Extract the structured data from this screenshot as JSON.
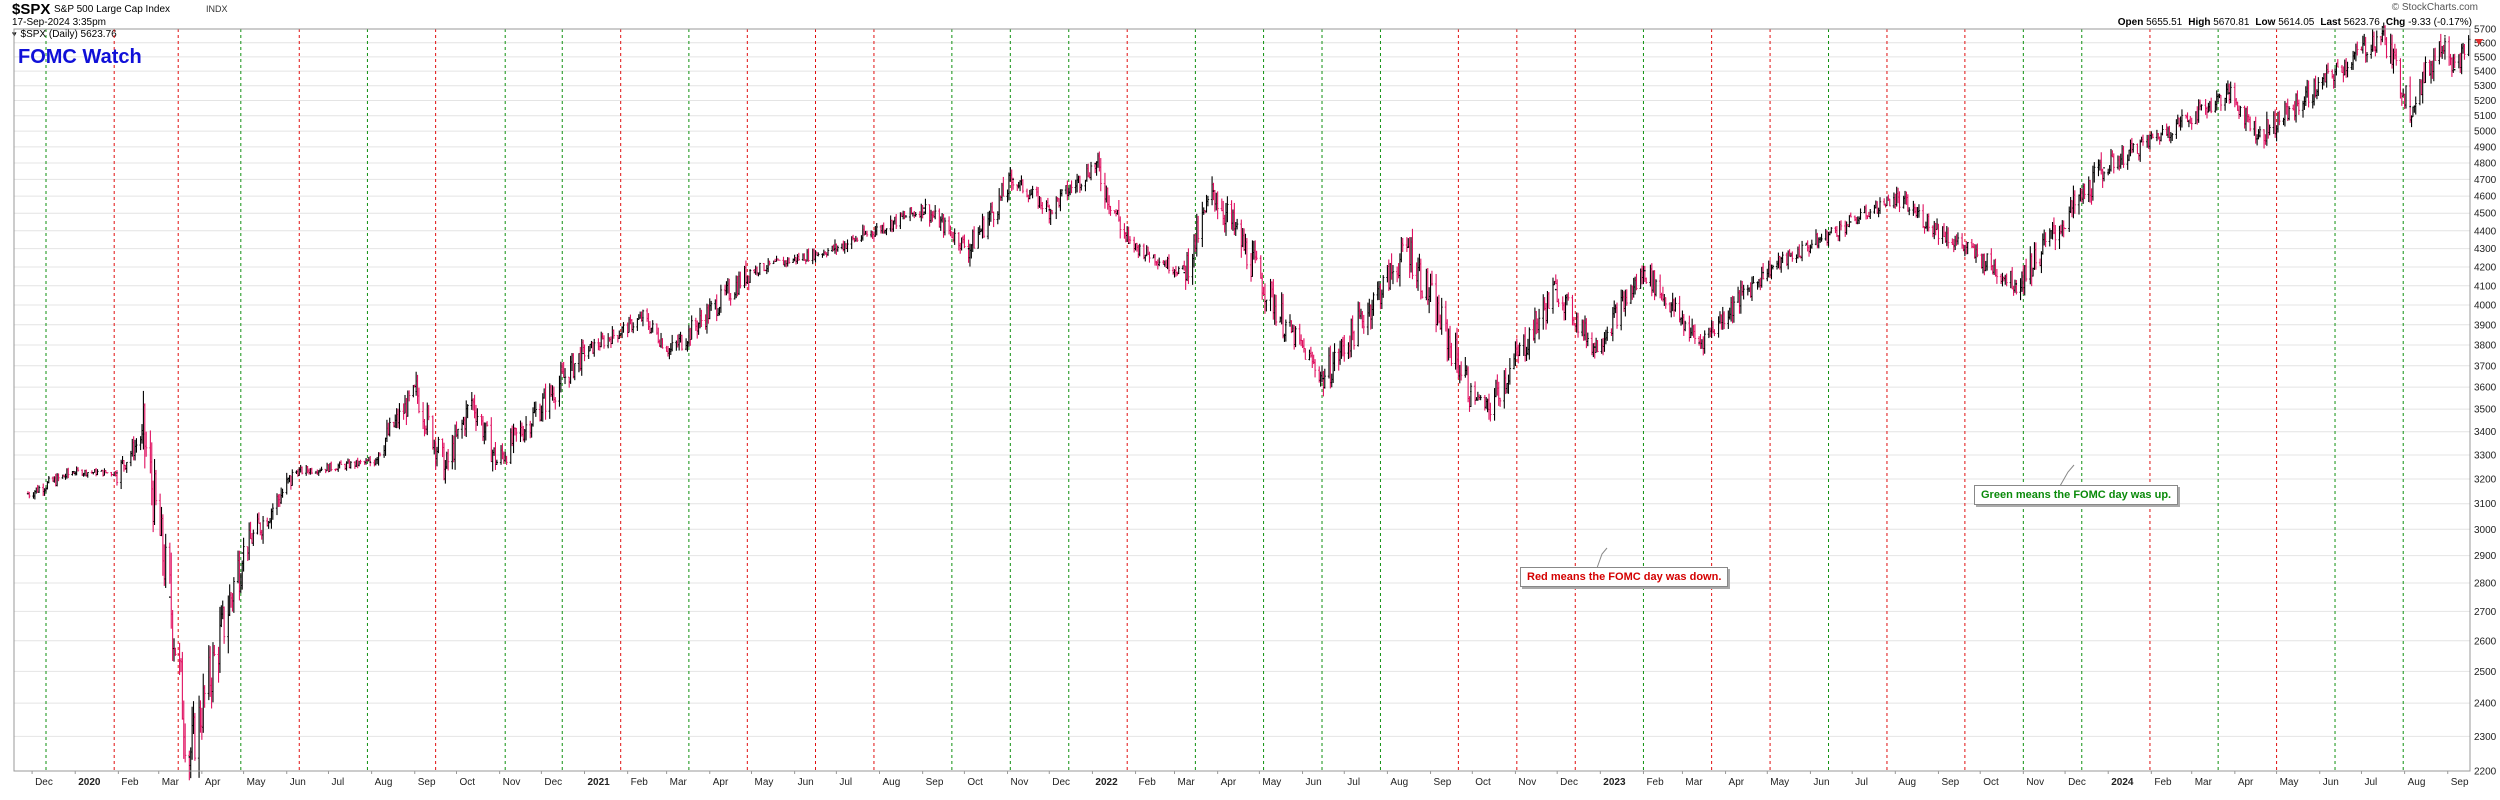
{
  "header": {
    "symbol": "$SPX",
    "name": "S&P 500 Large Cap Index",
    "exchange": "INDX",
    "date": "17-Sep-2024 3:35pm",
    "legend": "$SPX (Daily) 5623.76",
    "brand": "© StockCharts.com",
    "open_label": "Open",
    "open_value": "5655.51",
    "high_label": "High",
    "high_value": "5670.81",
    "low_label": "Low",
    "low_value": "5614.05",
    "last_label": "Last",
    "last_value": "5623.76",
    "chg_label": "Chg",
    "chg_value": "-9.33 (-0.17%)"
  },
  "chart_title": "FOMC Watch",
  "notes": {
    "red": "Red means the FOMC day was down.",
    "green": "Green means the FOMC day was up."
  },
  "colors": {
    "up": "#000000",
    "down": "#e01060",
    "fomc_up": "#109010",
    "fomc_down": "#e01010",
    "grid": "#e4e4e4"
  },
  "chart_data": {
    "type": "line",
    "title": "FOMC Watch",
    "series": [
      {
        "name": "$SPX (Daily)",
        "x": [
          "2019-11-28",
          "2019-12-31",
          "2020-01-31",
          "2020-02-19",
          "2020-03-09",
          "2020-03-23",
          "2020-04-30",
          "2020-06-08",
          "2020-07-31",
          "2020-09-02",
          "2020-09-23",
          "2020-10-12",
          "2020-10-30",
          "2020-12-31",
          "2021-02-12",
          "2021-03-04",
          "2021-04-30",
          "2021-06-30",
          "2021-09-02",
          "2021-10-04",
          "2021-11-05",
          "2021-12-01",
          "2022-01-03",
          "2022-01-27",
          "2022-03-08",
          "2022-03-29",
          "2022-05-20",
          "2022-06-16",
          "2022-08-16",
          "2022-09-30",
          "2022-10-12",
          "2022-11-30",
          "2022-12-28",
          "2023-02-02",
          "2023-03-13",
          "2023-04-28",
          "2023-06-30",
          "2023-07-31",
          "2023-10-27",
          "2023-12-29",
          "2024-03-28",
          "2024-04-19",
          "2024-07-16",
          "2024-08-05",
          "2024-08-30",
          "2024-09-06",
          "2024-09-17"
        ],
        "values": [
          3140,
          3230,
          3225,
          3390,
          2750,
          2240,
          2910,
          3230,
          3270,
          3580,
          3240,
          3540,
          3270,
          3760,
          3935,
          3770,
          4180,
          4300,
          4530,
          4300,
          4700,
          4520,
          4795,
          4330,
          4170,
          4630,
          3900,
          3640,
          4310,
          3580,
          3500,
          4080,
          3790,
          4180,
          3810,
          4170,
          4450,
          4590,
          4110,
          4770,
          5250,
          4970,
          5667,
          5160,
          5650,
          5410,
          5624
        ]
      }
    ],
    "y_axis": {
      "min": 2200,
      "max": 5700,
      "ticks": [
        2200,
        2300,
        2400,
        2500,
        2600,
        2700,
        2800,
        2900,
        3000,
        3100,
        3200,
        3300,
        3400,
        3500,
        3600,
        3700,
        3800,
        3900,
        4000,
        4100,
        4200,
        4300,
        4400,
        4500,
        4600,
        4700,
        4800,
        4900,
        5000,
        5100,
        5200,
        5300,
        5400,
        5500,
        5600,
        5700
      ],
      "position": "right",
      "scale": "log"
    },
    "x_axis": {
      "start": "2019-11-18",
      "end": "2024-09-17",
      "ticks": [
        {
          "date": "2019-12-01",
          "label": "Dec"
        },
        {
          "date": "2020-01-01",
          "label": "2020",
          "year": true
        },
        {
          "date": "2020-02-01",
          "label": "Feb"
        },
        {
          "date": "2020-03-01",
          "label": "Mar"
        },
        {
          "date": "2020-04-01",
          "label": "Apr"
        },
        {
          "date": "2020-05-01",
          "label": "May"
        },
        {
          "date": "2020-06-01",
          "label": "Jun"
        },
        {
          "date": "2020-07-01",
          "label": "Jul"
        },
        {
          "date": "2020-08-01",
          "label": "Aug"
        },
        {
          "date": "2020-09-01",
          "label": "Sep"
        },
        {
          "date": "2020-10-01",
          "label": "Oct"
        },
        {
          "date": "2020-11-01",
          "label": "Nov"
        },
        {
          "date": "2020-12-01",
          "label": "Dec"
        },
        {
          "date": "2021-01-01",
          "label": "2021",
          "year": true
        },
        {
          "date": "2021-02-01",
          "label": "Feb"
        },
        {
          "date": "2021-03-01",
          "label": "Mar"
        },
        {
          "date": "2021-04-01",
          "label": "Apr"
        },
        {
          "date": "2021-05-01",
          "label": "May"
        },
        {
          "date": "2021-06-01",
          "label": "Jun"
        },
        {
          "date": "2021-07-01",
          "label": "Jul"
        },
        {
          "date": "2021-08-01",
          "label": "Aug"
        },
        {
          "date": "2021-09-01",
          "label": "Sep"
        },
        {
          "date": "2021-10-01",
          "label": "Oct"
        },
        {
          "date": "2021-11-01",
          "label": "Nov"
        },
        {
          "date": "2021-12-01",
          "label": "Dec"
        },
        {
          "date": "2022-01-01",
          "label": "2022",
          "year": true
        },
        {
          "date": "2022-02-01",
          "label": "Feb"
        },
        {
          "date": "2022-03-01",
          "label": "Mar"
        },
        {
          "date": "2022-04-01",
          "label": "Apr"
        },
        {
          "date": "2022-05-01",
          "label": "May"
        },
        {
          "date": "2022-06-01",
          "label": "Jun"
        },
        {
          "date": "2022-07-01",
          "label": "Jul"
        },
        {
          "date": "2022-08-01",
          "label": "Aug"
        },
        {
          "date": "2022-09-01",
          "label": "Sep"
        },
        {
          "date": "2022-10-01",
          "label": "Oct"
        },
        {
          "date": "2022-11-01",
          "label": "Nov"
        },
        {
          "date": "2022-12-01",
          "label": "Dec"
        },
        {
          "date": "2023-01-01",
          "label": "2023",
          "year": true
        },
        {
          "date": "2023-02-01",
          "label": "Feb"
        },
        {
          "date": "2023-03-01",
          "label": "Mar"
        },
        {
          "date": "2023-04-01",
          "label": "Apr"
        },
        {
          "date": "2023-05-01",
          "label": "May"
        },
        {
          "date": "2023-06-01",
          "label": "Jun"
        },
        {
          "date": "2023-07-01",
          "label": "Jul"
        },
        {
          "date": "2023-08-01",
          "label": "Aug"
        },
        {
          "date": "2023-09-01",
          "label": "Sep"
        },
        {
          "date": "2023-10-01",
          "label": "Oct"
        },
        {
          "date": "2023-11-01",
          "label": "Nov"
        },
        {
          "date": "2023-12-01",
          "label": "Dec"
        },
        {
          "date": "2024-01-01",
          "label": "2024",
          "year": true
        },
        {
          "date": "2024-02-01",
          "label": "Feb"
        },
        {
          "date": "2024-03-01",
          "label": "Mar"
        },
        {
          "date": "2024-04-01",
          "label": "Apr"
        },
        {
          "date": "2024-05-01",
          "label": "May"
        },
        {
          "date": "2024-06-01",
          "label": "Jun"
        },
        {
          "date": "2024-07-01",
          "label": "Jul"
        },
        {
          "date": "2024-08-01",
          "label": "Aug"
        },
        {
          "date": "2024-09-01",
          "label": "Sep"
        }
      ]
    },
    "fomc_days": [
      {
        "date": "2019-12-11",
        "result": "up"
      },
      {
        "date": "2020-01-29",
        "result": "down"
      },
      {
        "date": "2020-03-15",
        "result": "down"
      },
      {
        "date": "2020-04-29",
        "result": "up"
      },
      {
        "date": "2020-06-10",
        "result": "down"
      },
      {
        "date": "2020-07-29",
        "result": "up"
      },
      {
        "date": "2020-09-16",
        "result": "down"
      },
      {
        "date": "2020-11-05",
        "result": "up"
      },
      {
        "date": "2020-12-16",
        "result": "up"
      },
      {
        "date": "2021-01-27",
        "result": "down"
      },
      {
        "date": "2021-03-17",
        "result": "up"
      },
      {
        "date": "2021-04-28",
        "result": "down"
      },
      {
        "date": "2021-06-16",
        "result": "down"
      },
      {
        "date": "2021-07-28",
        "result": "down"
      },
      {
        "date": "2021-09-22",
        "result": "up"
      },
      {
        "date": "2021-11-03",
        "result": "up"
      },
      {
        "date": "2021-12-15",
        "result": "up"
      },
      {
        "date": "2022-01-26",
        "result": "down"
      },
      {
        "date": "2022-03-16",
        "result": "up"
      },
      {
        "date": "2022-05-04",
        "result": "up"
      },
      {
        "date": "2022-06-15",
        "result": "up"
      },
      {
        "date": "2022-07-27",
        "result": "up"
      },
      {
        "date": "2022-09-21",
        "result": "down"
      },
      {
        "date": "2022-11-02",
        "result": "down"
      },
      {
        "date": "2022-12-14",
        "result": "down"
      },
      {
        "date": "2023-02-01",
        "result": "up"
      },
      {
        "date": "2023-03-22",
        "result": "down"
      },
      {
        "date": "2023-05-03",
        "result": "down"
      },
      {
        "date": "2023-06-14",
        "result": "up"
      },
      {
        "date": "2023-07-26",
        "result": "down"
      },
      {
        "date": "2023-09-20",
        "result": "down"
      },
      {
        "date": "2023-11-01",
        "result": "up"
      },
      {
        "date": "2023-12-13",
        "result": "up"
      },
      {
        "date": "2024-01-31",
        "result": "down"
      },
      {
        "date": "2024-03-20",
        "result": "up"
      },
      {
        "date": "2024-05-01",
        "result": "down"
      },
      {
        "date": "2024-06-12",
        "result": "up"
      },
      {
        "date": "2024-07-31",
        "result": "up"
      }
    ],
    "grid": true,
    "legend": "top-left"
  }
}
